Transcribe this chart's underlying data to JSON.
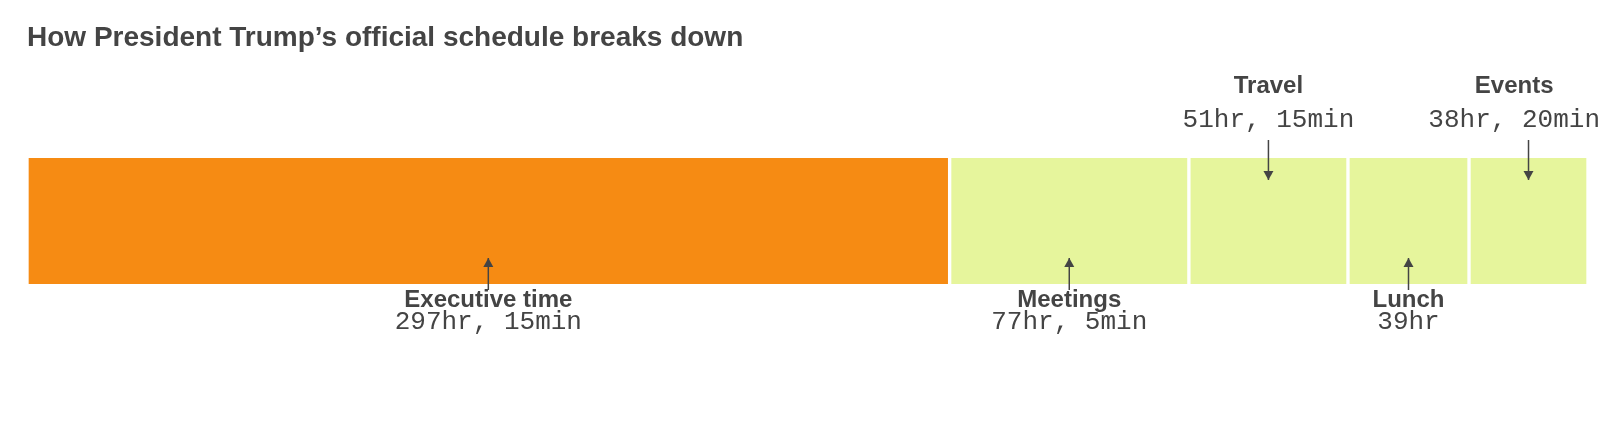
{
  "chart_data": {
    "type": "bar",
    "title": "How President Trump’s official schedule breaks down",
    "orientation": "horizontal",
    "stacked": true,
    "categories": [
      null
    ],
    "series": [
      {
        "name": "Executive time",
        "color": "#f68b13",
        "values": [
          297.25
        ],
        "value_labels": [
          "297hr, 15min"
        ]
      },
      {
        "name": "Meetings",
        "color": "#e6f59c",
        "values": [
          77.08
        ],
        "value_labels": [
          "77hr, 5min"
        ]
      },
      {
        "name": "Travel",
        "color": "#e6f59c",
        "values": [
          51.25
        ],
        "value_labels": [
          "51hr, 15min"
        ]
      },
      {
        "name": "Lunch",
        "color": "#e6f59c",
        "values": [
          39
        ],
        "value_labels": [
          "39hr"
        ]
      },
      {
        "name": "Events",
        "color": "#e6f59c",
        "values": [
          38.33
        ],
        "value_labels": [
          "38hr, 20min"
        ]
      }
    ]
  }
}
